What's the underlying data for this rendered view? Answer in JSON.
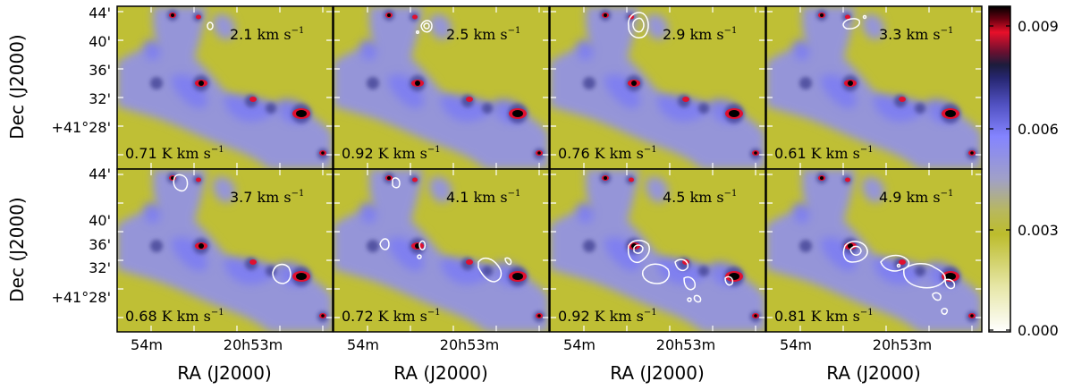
{
  "figure": {
    "ylabel": "Dec (J2000)",
    "xlabel": "RA (J2000)",
    "ytick_labels_top": [
      "44'",
      "40'",
      "36'",
      "32'",
      "+41°28'"
    ],
    "ytick_labels_bottom": [
      "44'",
      "40'",
      "36'",
      "32'",
      "+41°28'"
    ],
    "xtick_labels": [
      "54m",
      "20h53m"
    ]
  },
  "panels": [
    {
      "velocity": "2.1",
      "level": "0.71"
    },
    {
      "velocity": "2.5",
      "level": "0.92"
    },
    {
      "velocity": "2.9",
      "level": "0.76"
    },
    {
      "velocity": "3.3",
      "level": "0.61"
    },
    {
      "velocity": "3.7",
      "level": "0.68"
    },
    {
      "velocity": "4.1",
      "level": "0.72"
    },
    {
      "velocity": "4.5",
      "level": "0.92"
    },
    {
      "velocity": "4.9",
      "level": "0.81"
    }
  ],
  "units": {
    "velocity": "km s",
    "level": "K km s",
    "exponent": "−1"
  },
  "colorbar": {
    "tick_labels": [
      "0.009",
      "0.006",
      "0.003",
      "0.000"
    ],
    "tick_values": [
      0.009,
      0.006,
      0.003,
      0.0
    ],
    "max": 0.0095,
    "colors": [
      "#ffffff",
      "#c0c020",
      "#b8b84a",
      "#9c9cc4",
      "#8080ff",
      "#3c3ca0",
      "#1a1a50",
      "#c01030",
      "#ff0020",
      "#000000"
    ]
  }
}
